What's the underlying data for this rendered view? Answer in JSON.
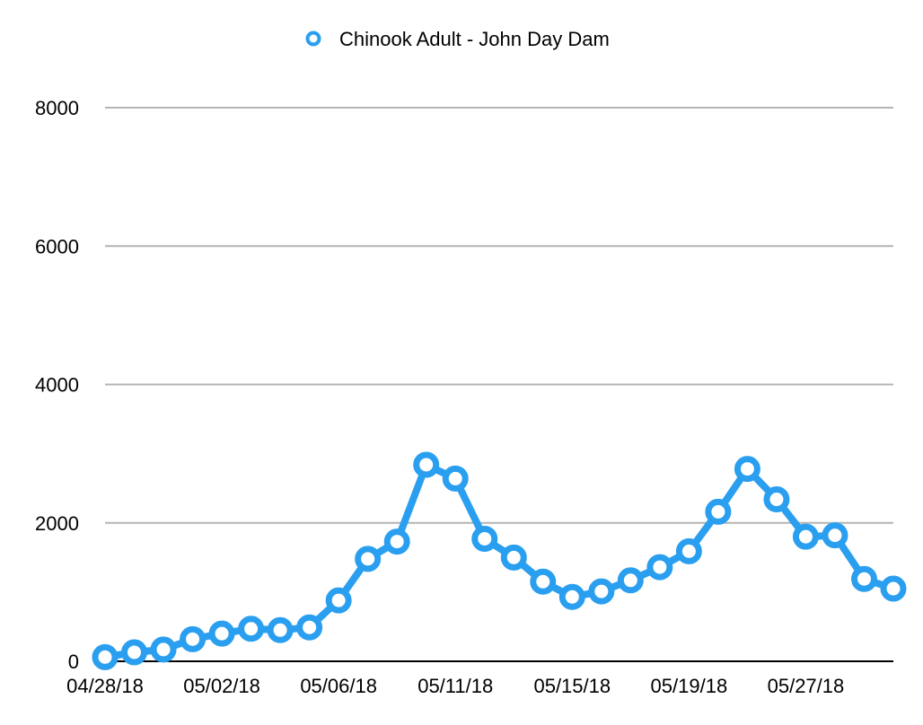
{
  "chart_data": {
    "type": "line",
    "title": "",
    "xlabel": "",
    "ylabel": "",
    "ylim": [
      0,
      8000
    ],
    "yticks": [
      0,
      2000,
      4000,
      6000,
      8000
    ],
    "ytick_labels": [
      "0",
      "2000",
      "4000",
      "6000",
      "8000"
    ],
    "x_tick_labels": [
      "04/28/18",
      "05/02/18",
      "05/06/18",
      "05/11/18",
      "05/15/18",
      "05/19/18",
      "05/27/18"
    ],
    "x_tick_positions": [
      0,
      4,
      8,
      12,
      16,
      20,
      24
    ],
    "grid": true,
    "legend_position": "top-center",
    "series": [
      {
        "name": "Chinook Adult - John Day Dam",
        "color": "#2a9ff0",
        "values": [
          60,
          130,
          170,
          320,
          400,
          470,
          450,
          490,
          880,
          1480,
          1730,
          2840,
          2640,
          1770,
          1500,
          1150,
          930,
          1010,
          1170,
          1360,
          1590,
          2160,
          2780,
          2340,
          1800,
          1820,
          1190,
          1050
        ]
      }
    ]
  }
}
